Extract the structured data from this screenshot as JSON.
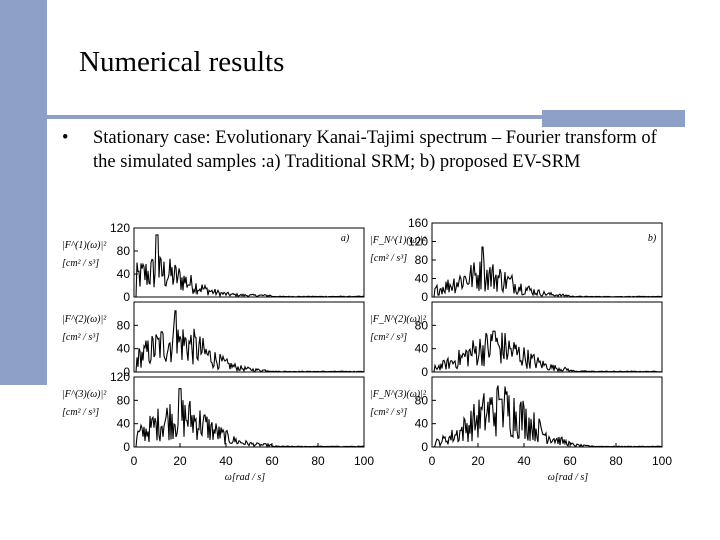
{
  "slide": {
    "title": "Numerical results",
    "bullet_marker": "•",
    "bullet_text": "Stationary case: Evolutionary Kanai-Tajimi spectrum – Fourier transform of the simulated samples :a) Traditional SRM; b) proposed EV-SRM"
  },
  "accent_color": "#8fa0c8",
  "chart_data": [
    {
      "type": "line",
      "panel": "a)",
      "x_ticks": [
        "0",
        "20",
        "40",
        "60",
        "80",
        "100"
      ],
      "xlim": [
        0,
        100
      ],
      "xlabel": "ω[rad / s]",
      "subplots": [
        {
          "ylabel": "|F^(1)(ω)|²",
          "unit": "[cm² / s³]",
          "ylim": [
            0,
            120
          ],
          "y_ticks": [
            "0",
            "40",
            "80",
            "120"
          ],
          "peak_x": 10,
          "peak_y": 108,
          "mean_y": 18
        },
        {
          "ylabel": "|F^(2)(ω)|²",
          "unit": "[cm² / s³]",
          "ylim": [
            0,
            120
          ],
          "y_ticks": [
            "0",
            "40",
            "80"
          ],
          "peak_x": 18,
          "peak_y": 105,
          "mean_y": 22
        },
        {
          "ylabel": "|F^(3)(ω)|²",
          "unit": "[cm² / s³]",
          "ylim": [
            0,
            120
          ],
          "y_ticks": [
            "0",
            "40",
            "80",
            "120"
          ],
          "peak_x": 20,
          "peak_y": 100,
          "mean_y": 22
        }
      ]
    },
    {
      "type": "line",
      "panel": "b)",
      "x_ticks": [
        "0",
        "20",
        "40",
        "60",
        "80",
        "100"
      ],
      "xlim": [
        0,
        100
      ],
      "xlabel": "ω[rad / s]",
      "subplots": [
        {
          "ylabel": "|F_N^(1)(ω)|²",
          "unit": "[cm² / s³]",
          "ylim": [
            0,
            160
          ],
          "y_ticks": [
            "0",
            "40",
            "80",
            "120",
            "160"
          ],
          "peak_x": 22,
          "peak_y": 108,
          "mean_y": 20
        },
        {
          "ylabel": "|F_N^(2)(ω)|²",
          "unit": "[cm² / s³]",
          "ylim": [
            0,
            120
          ],
          "y_ticks": [
            "0",
            "40",
            "80"
          ],
          "peak_x": 27,
          "peak_y": 70,
          "mean_y": 18
        },
        {
          "ylabel": "|F_N^(3)(ω)|²",
          "unit": "[cm² / s³]",
          "ylim": [
            0,
            120
          ],
          "y_ticks": [
            "0",
            "40",
            "80"
          ],
          "peak_x": 30,
          "peak_y": 82,
          "mean_y": 28
        }
      ]
    }
  ]
}
